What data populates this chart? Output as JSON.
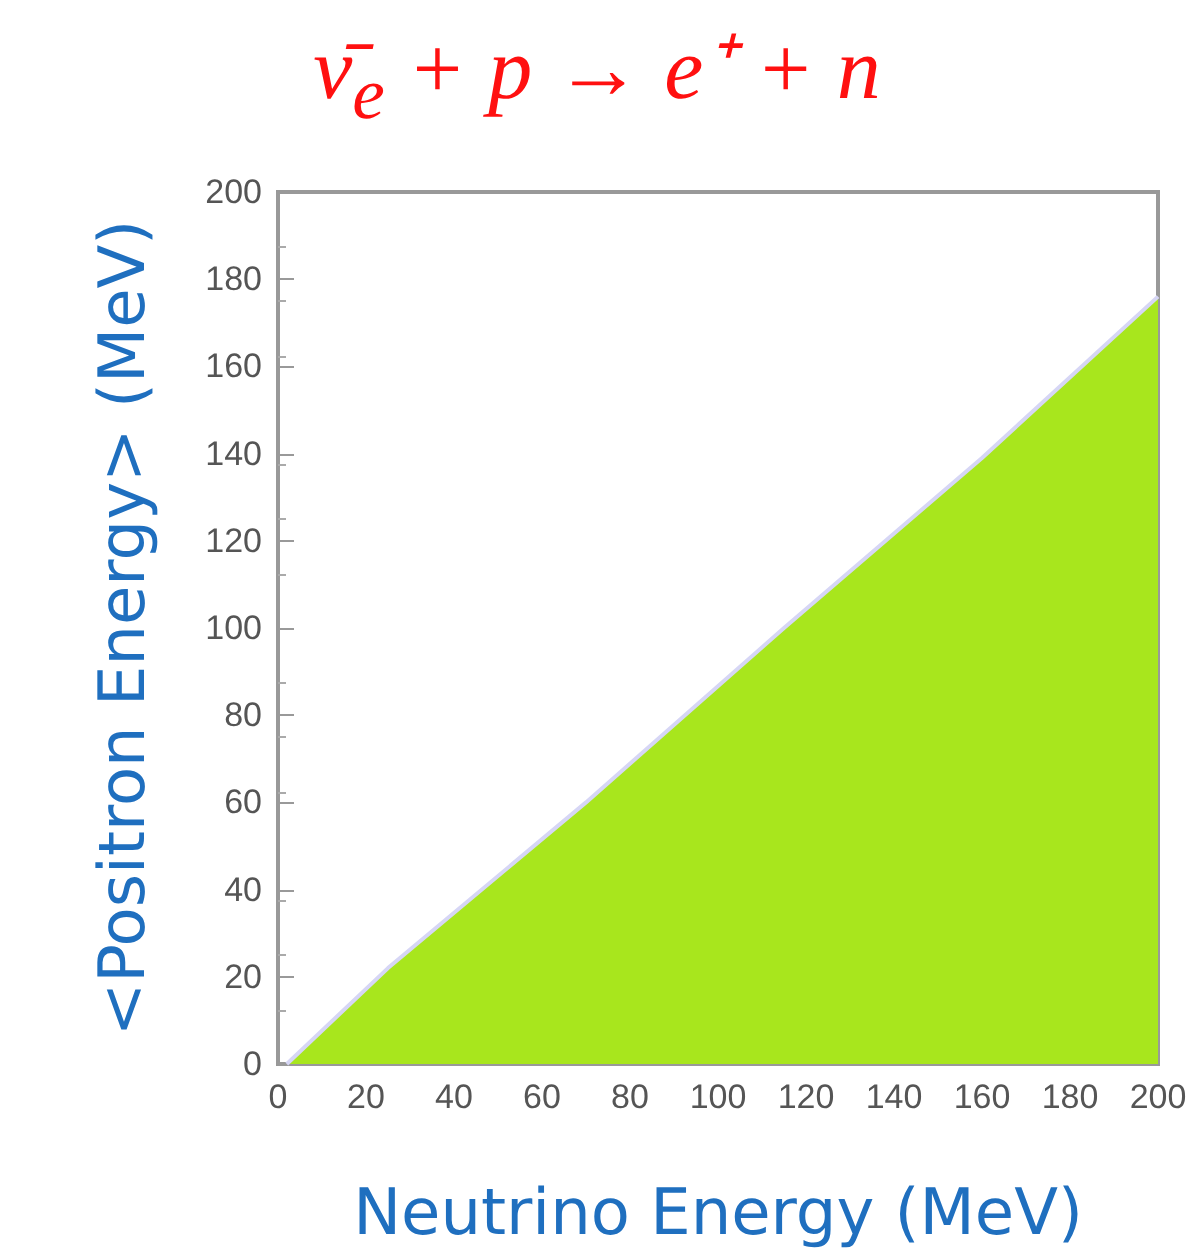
{
  "chart_data": {
    "type": "area",
    "title": "ν̄$_{e}$ + p → e⁺ + n",
    "xlabel": "Neutrino Energy (MeV)",
    "ylabel": "<Positron Energy> (MeV)",
    "x": [
      2,
      25,
      70,
      115,
      160,
      200
    ],
    "series": [
      {
        "color": "#a8e61d",
        "values": [
          0,
          22,
          60,
          100,
          139,
          176
        ]
      }
    ],
    "xlim": [
      0,
      200
    ],
    "xticks": [
      0,
      20,
      40,
      60,
      80,
      100,
      120,
      140,
      160,
      180,
      200
    ],
    "ylim": [
      0,
      200
    ],
    "yticks": [
      0,
      20,
      40,
      60,
      80,
      100,
      120,
      140,
      160,
      180,
      200
    ],
    "grid": false,
    "marker": "none"
  }
}
